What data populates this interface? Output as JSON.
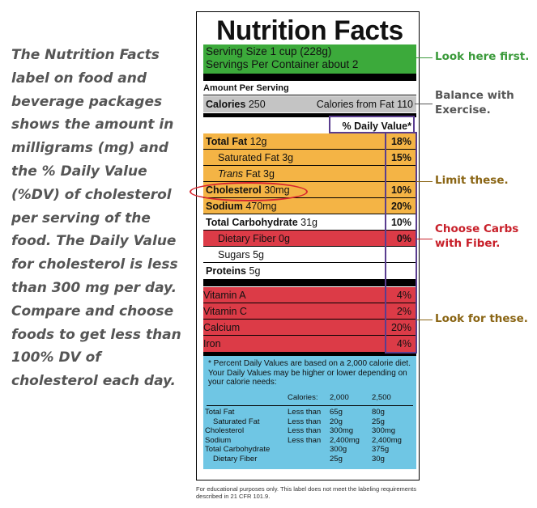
{
  "side_text": "The Nutrition Facts label on food and beverage packages shows the amount in milligrams (mg) and the % Daily Value (%DV) of cholesterol per serving of the food. The Daily Value for cholesterol is less than 300 mg per day. Compare and choose foods to get less than 100% DV of cholesterol each day.",
  "label": {
    "title": "Nutrition Facts",
    "serving_size": "Serving Size 1 cup (228g)",
    "servings_per_container": "Servings Per Container about 2",
    "amount_per_serving": "Amount Per Serving",
    "calories_label": "Calories",
    "calories_value": "250",
    "calories_from_fat": "Calories from Fat 110",
    "daily_value_header": "% Daily Value*",
    "nutrients": [
      {
        "name": "Total Fat",
        "amount": "12g",
        "dv": "18%"
      },
      {
        "name": "Saturated Fat",
        "amount": "3g",
        "dv": "15%"
      },
      {
        "name": "Trans",
        "suffix": "Fat 3g",
        "dv": ""
      },
      {
        "name": "Cholesterol",
        "amount": "30mg",
        "dv": "10%"
      },
      {
        "name": "Sodium",
        "amount": "470mg",
        "dv": "20%"
      },
      {
        "name": "Total Carbohydrate",
        "amount": "31g",
        "dv": "10%"
      },
      {
        "name": "Dietary Fiber",
        "amount": "0g",
        "dv": "0%"
      },
      {
        "name": "Sugars",
        "amount": "5g",
        "dv": ""
      },
      {
        "name": "Proteins",
        "amount": "5g",
        "dv": ""
      }
    ],
    "vitamins": [
      {
        "name": "Vitamin A",
        "dv": "4%"
      },
      {
        "name": "Vitamin C",
        "dv": "2%"
      },
      {
        "name": "Calcium",
        "dv": "20%"
      },
      {
        "name": "Iron",
        "dv": "4%"
      }
    ],
    "footnote": "* Percent Daily Values are based on a 2,000 calorie diet. Your Daily Values may be higher or lower depending on your calorie needs:",
    "table_header": {
      "label": "Calories:",
      "c1": "2,000",
      "c2": "2,500"
    },
    "table_rows": [
      {
        "name": "Total Fat",
        "qual": "Less than",
        "c1": "65g",
        "c2": "80g"
      },
      {
        "name": "Saturated Fat",
        "qual": "Less than",
        "c1": "20g",
        "c2": "25g"
      },
      {
        "name": "Cholesterol",
        "qual": "Less than",
        "c1": "300mg",
        "c2": "300mg"
      },
      {
        "name": "Sodium",
        "qual": "Less than",
        "c1": "2,400mg",
        "c2": "2,400mg"
      },
      {
        "name": "Total Carbohydrate",
        "qual": "",
        "c1": "300g",
        "c2": "375g"
      },
      {
        "name": "Dietary Fiber",
        "qual": "",
        "c1": "25g",
        "c2": "30g"
      }
    ]
  },
  "callouts": {
    "look_first": "Look here first.",
    "balance": "Balance with Exercise.",
    "limit": "Limit these.",
    "carbs": "Choose Carbs with Fiber.",
    "look_for": "Look for these."
  },
  "disclaimer": "For educational purposes only. This label does not meet the labeling requirements described in 21 CFR 101.9.",
  "colors": {
    "green": "#3caa3b",
    "grey": "#c4c4c4",
    "orange": "#f4b445",
    "red": "#dc3b47",
    "blue": "#6fc6e4",
    "purple": "#5a3d8f",
    "callout_green": "#3a9a3a",
    "callout_grey": "#555555",
    "callout_brown": "#8a6514",
    "callout_red": "#c8202a"
  }
}
